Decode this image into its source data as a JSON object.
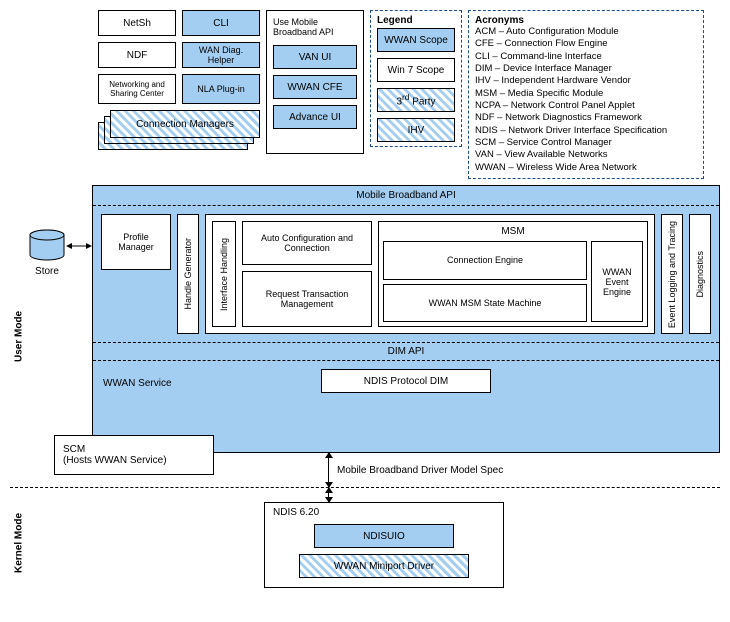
{
  "colors": {
    "blue_fill": "#a3cef1",
    "dashed_border": "#1a4c8b",
    "line": "#000000",
    "bg": "#ffffff"
  },
  "top": {
    "col1": {
      "a": "NetSh",
      "b": "NDF",
      "c": "Networking and Sharing Center"
    },
    "col2": {
      "a": "CLI",
      "b": "WAN Diag. Helper",
      "c": "NLA Plug-in"
    },
    "col3": {
      "title": "Use Mobile Broadband API",
      "a": "VAN UI",
      "b": "WWAN CFE",
      "c": "Advance UI"
    },
    "conn_mgrs": "Connection Managers",
    "legend": {
      "title": "Legend",
      "wwan": "WWAN Scope",
      "win7": "Win 7 Scope",
      "third": "3rd Party",
      "ihv": "IHV",
      "third_sup": "rd"
    },
    "acronyms": {
      "title": "Acronyms",
      "lines": [
        "ACM – Auto Configuration Module",
        "CFE – Connection Flow Engine",
        "CLI – Command-line Interface",
        "DIM – Device Interface Manager",
        "IHV – Independent Hardware Vendor",
        "MSM – Media Specific Module",
        "NCPA – Network Control Panel Applet",
        "NDF – Network Diagnostics Framework",
        "NDIS – Network Driver Interface Specification",
        "SCM – Service Control Manager",
        "VAN – View Available Networks",
        "WWAN – Wireless Wide Area Network"
      ]
    }
  },
  "mid": {
    "mb_api": "Mobile Broadband API",
    "store": "Store",
    "profile_mgr": "Profile Manager",
    "handle_gen": "Handle Generator",
    "iface": "Interface Handling",
    "auto_conf": "Auto Configuration and Connection",
    "req_tx": "Request Transaction Management",
    "msm": "MSM",
    "conn_eng": "Connection Engine",
    "wwan_msm": "WWAN MSM State Machine",
    "wwan_evt": "WWAN Event Engine",
    "evt_log": "Event Logging and Tracing",
    "diag": "Diagnostics",
    "dim_api": "DIM API",
    "ndis_dim": "NDIS Protocol DIM",
    "wwan_svc": "WWAN Service",
    "scm": "SCM\n(Hosts WWAN Service)",
    "driver_spec": "Mobile Broadband Driver Model Spec"
  },
  "kmode": {
    "ndis": "NDIS 6.20",
    "ndisuio": "NDISUIO",
    "miniport": "WWAN Miniport Driver"
  },
  "labels": {
    "user_mode": "User Mode",
    "kernel_mode": "Kernel Mode"
  }
}
